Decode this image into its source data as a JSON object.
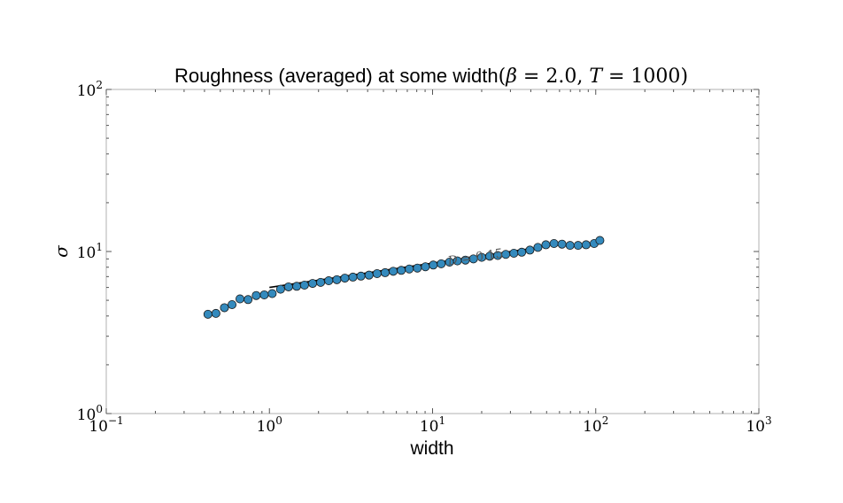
{
  "chart_data": {
    "type": "scatter",
    "title": {
      "main": "Roughness (averaged) at some width",
      "params_open": "(",
      "beta_sym": "β",
      "beta_eq": " = 2.0, ",
      "t_sym": "T",
      "t_eq": " = 1000",
      "params_close": ")"
    },
    "xlabel": "width",
    "ylabel": "σ",
    "xscale": "log",
    "yscale": "log",
    "xlim": [
      0.1,
      1000
    ],
    "ylim": [
      1,
      100
    ],
    "x_ticks": [
      {
        "value": 0.1,
        "base": "10",
        "exp": "−1"
      },
      {
        "value": 1,
        "base": "10",
        "exp": "0"
      },
      {
        "value": 10,
        "base": "10",
        "exp": "1"
      },
      {
        "value": 100,
        "base": "10",
        "exp": "2"
      },
      {
        "value": 1000,
        "base": "10",
        "exp": "3"
      }
    ],
    "y_ticks": [
      {
        "value": 1,
        "base": "10",
        "exp": "0"
      },
      {
        "value": 10,
        "base": "10",
        "exp": "1"
      },
      {
        "value": 100,
        "base": "10",
        "exp": "2"
      }
    ],
    "grid": false,
    "series": [
      {
        "marker_color": "#348abd",
        "x": [
          0.42,
          0.47,
          0.53,
          0.59,
          0.66,
          0.74,
          0.83,
          0.93,
          1.04,
          1.17,
          1.31,
          1.47,
          1.64,
          1.84,
          2.06,
          2.31,
          2.59,
          2.9,
          3.25,
          3.64,
          4.08,
          4.57,
          5.12,
          5.74,
          6.43,
          7.2,
          8.07,
          9.04,
          10.1,
          11.3,
          12.7,
          14.2,
          15.9,
          17.8,
          20.0,
          22.4,
          25.1,
          28.1,
          31.5,
          35.2,
          39.5,
          44.2,
          49.5,
          55.5,
          62.1,
          69.6,
          78.0,
          87.3,
          97.8,
          106.0
        ],
        "y": [
          4.1,
          4.15,
          4.5,
          4.7,
          5.1,
          5.05,
          5.35,
          5.4,
          5.5,
          5.85,
          6.05,
          6.1,
          6.2,
          6.35,
          6.45,
          6.6,
          6.7,
          6.85,
          6.95,
          7.05,
          7.15,
          7.3,
          7.4,
          7.55,
          7.65,
          7.8,
          7.9,
          8.05,
          8.25,
          8.4,
          8.6,
          8.75,
          8.85,
          9.0,
          9.2,
          9.35,
          9.45,
          9.6,
          9.75,
          9.9,
          10.2,
          10.6,
          11.0,
          11.2,
          11.1,
          10.9,
          10.9,
          11.0,
          11.2,
          11.7
        ]
      }
    ],
    "fit": {
      "x_range": [
        1.0,
        40.0
      ],
      "y_at_1": 6.0,
      "slope": 0.15,
      "color": "#000000",
      "label_sym": "D",
      "label_eq": " = 0.15"
    }
  }
}
